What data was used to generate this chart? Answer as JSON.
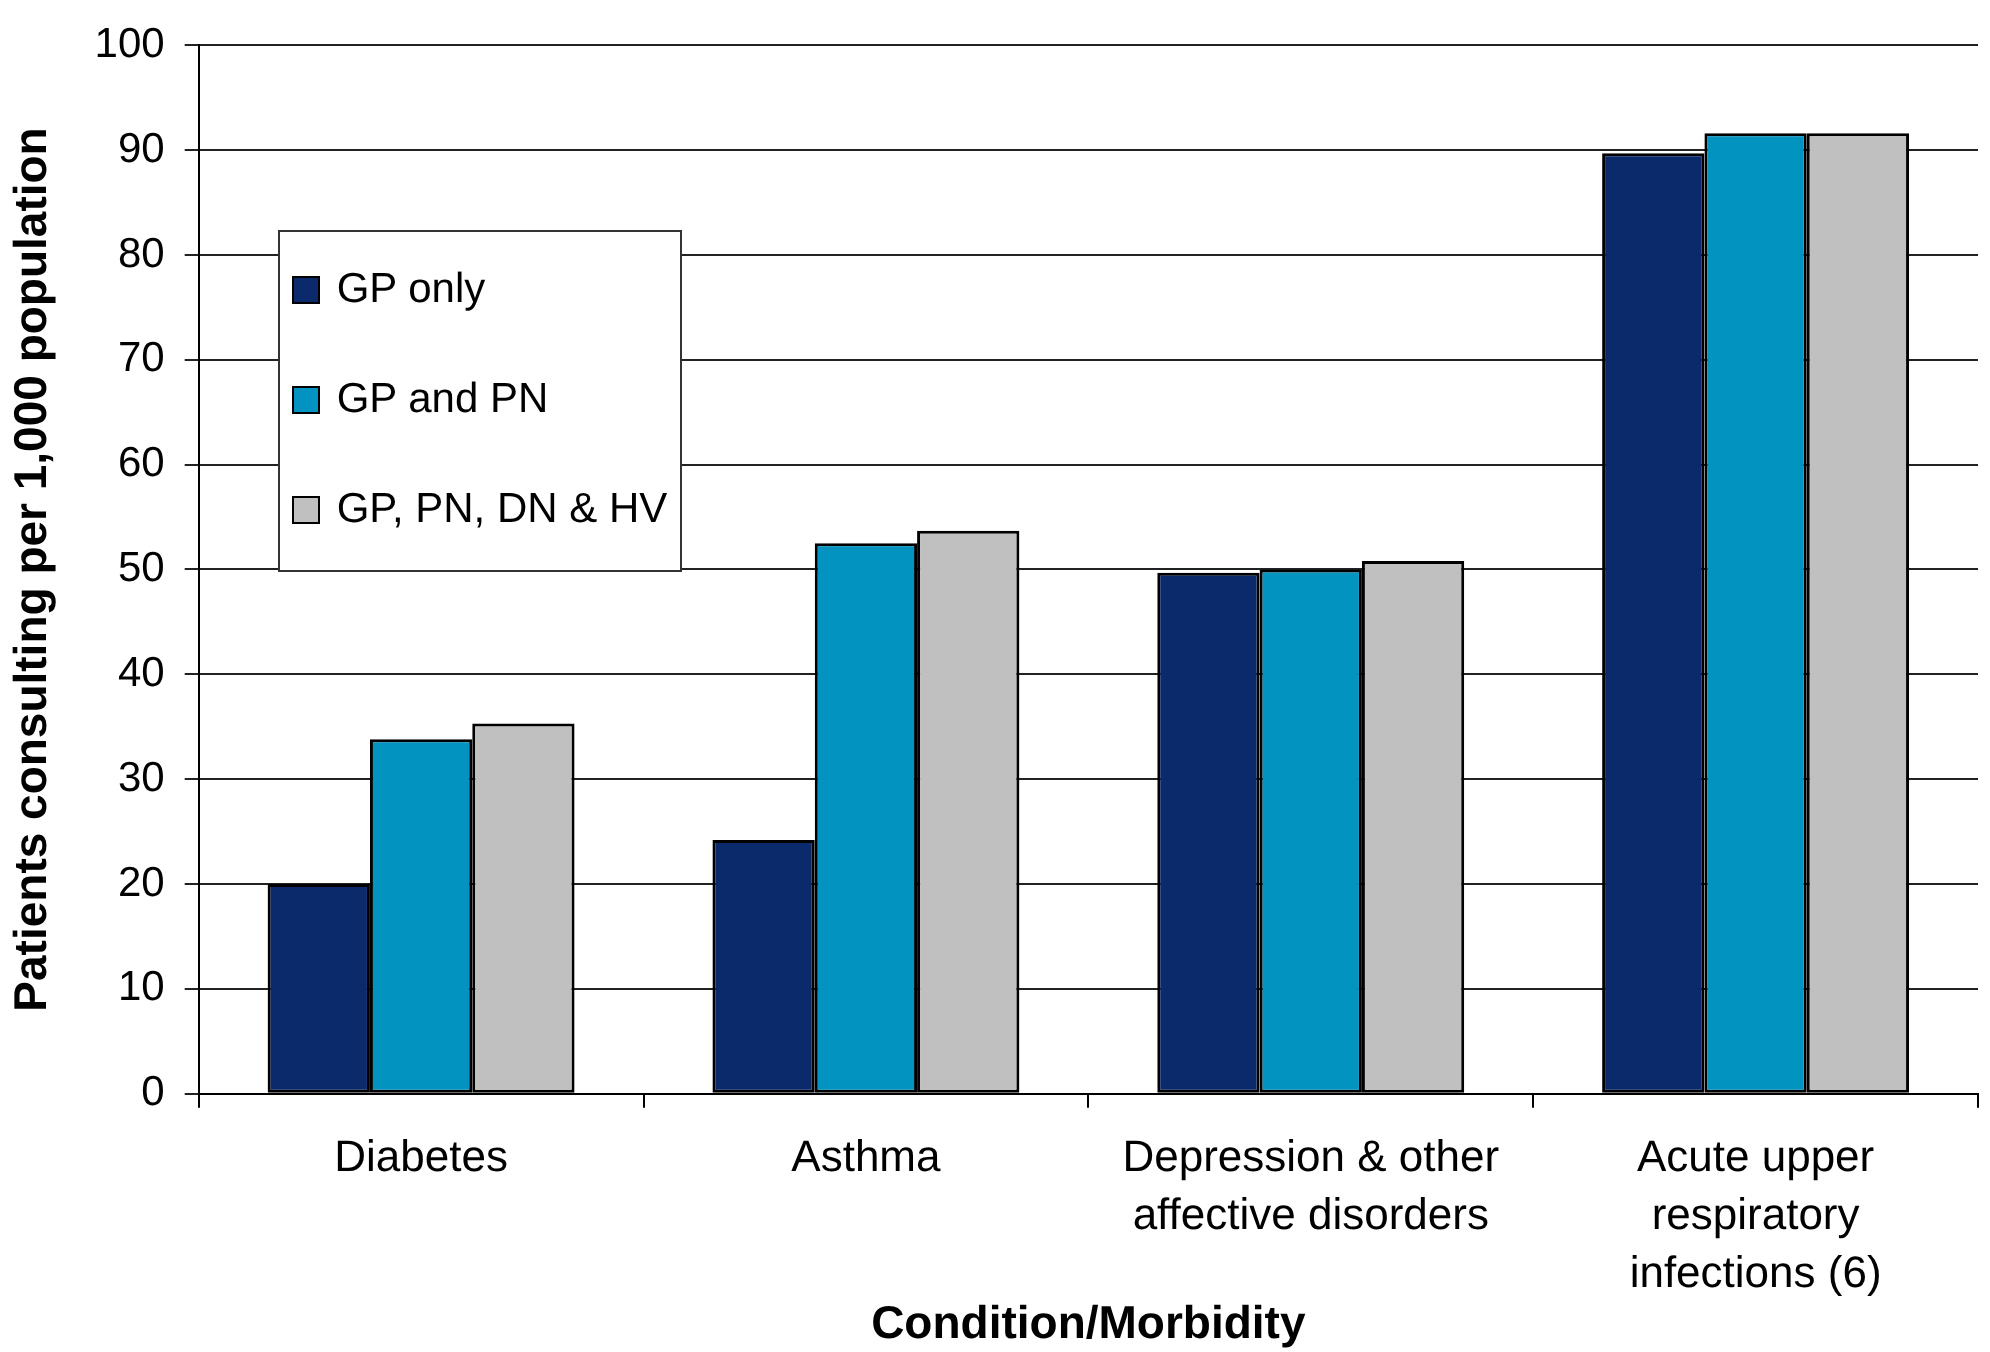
{
  "chart_data": {
    "type": "bar",
    "xlabel": "Condition/Morbidity",
    "ylabel": "Patients consulting per 1,000 population",
    "categories": [
      "Diabetes",
      "Asthma",
      "Depression & other affective disorders",
      "Acute upper respiratory infections (6)"
    ],
    "series": [
      {
        "name": "GP only",
        "color": "#0b2a6b",
        "values": [
          20.0,
          24.2,
          49.7,
          89.7
        ]
      },
      {
        "name": "GP and PN",
        "color": "#0393c0",
        "values": [
          33.8,
          52.5,
          50.0,
          91.6
        ]
      },
      {
        "name": "GP, PN, DN & HV",
        "color": "#c0c0c0",
        "values": [
          35.3,
          53.7,
          50.8,
          91.6
        ]
      }
    ],
    "ylim": [
      0,
      100
    ],
    "yticks": [
      0,
      10,
      20,
      30,
      40,
      50,
      60,
      70,
      80,
      90,
      100
    ],
    "grid": "y",
    "legend": "top left"
  }
}
